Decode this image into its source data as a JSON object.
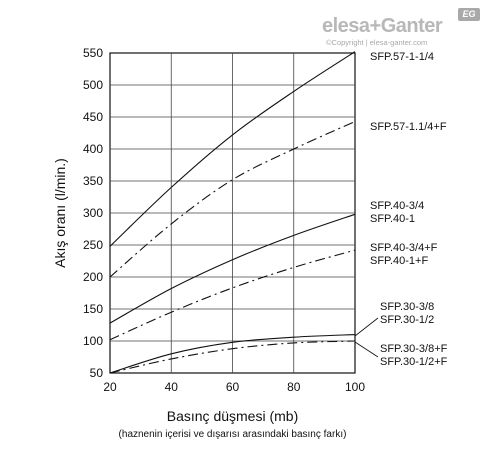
{
  "logo": {
    "brand": "elesa+Ganter",
    "sub": "©Copyright | elesa-ganter.com",
    "badge": "EG"
  },
  "chart_data": {
    "type": "line",
    "xlabel": "Basınç düşmesi (mb)",
    "xlabel_sub": "(haznenin içerisi ve dışarısı arasındaki basınç farkı)",
    "ylabel": "Akış oranı (l/min.)",
    "xlim": [
      20,
      100
    ],
    "ylim": [
      50,
      550
    ],
    "x_ticks": [
      20,
      40,
      60,
      80,
      100
    ],
    "y_ticks": [
      50,
      100,
      150,
      200,
      250,
      300,
      350,
      400,
      450,
      500,
      550
    ],
    "grid": true,
    "series": [
      {
        "name": "SFP.57-1-1/4",
        "style": "solid",
        "x": [
          20,
          40,
          60,
          80,
          100
        ],
        "y": [
          248,
          340,
          422,
          490,
          552
        ]
      },
      {
        "name": "SFP.57-1.1/4+F",
        "style": "dashdot",
        "x": [
          20,
          40,
          60,
          80,
          100
        ],
        "y": [
          200,
          283,
          352,
          400,
          443
        ]
      },
      {
        "name": "SFP.40-3/4",
        "label_lines": [
          "SFP.40-3/4",
          "SFP.40-1"
        ],
        "style": "solid",
        "x": [
          20,
          40,
          60,
          80,
          100
        ],
        "y": [
          128,
          182,
          227,
          265,
          298
        ]
      },
      {
        "name": "SFP.40-3/4+F",
        "label_lines": [
          "SFP.40-3/4+F",
          "SFP.40-1+F"
        ],
        "style": "dashdot",
        "x": [
          20,
          40,
          60,
          80,
          100
        ],
        "y": [
          102,
          145,
          183,
          215,
          242
        ]
      },
      {
        "name": "SFP.30-3/8",
        "label_lines": [
          "SFP.30-3/8",
          "SFP.30-1/2"
        ],
        "style": "solid",
        "x": [
          20,
          40,
          60,
          80,
          100
        ],
        "y": [
          50,
          80,
          98,
          106,
          110
        ]
      },
      {
        "name": "SFP.30-3/8+F",
        "label_lines": [
          "SFP.30-3/8+F",
          "SFP.30-1/2+F"
        ],
        "style": "dashdot",
        "x": [
          20,
          40,
          60,
          80,
          100
        ],
        "y": [
          50,
          72,
          88,
          97,
          100
        ]
      }
    ]
  }
}
